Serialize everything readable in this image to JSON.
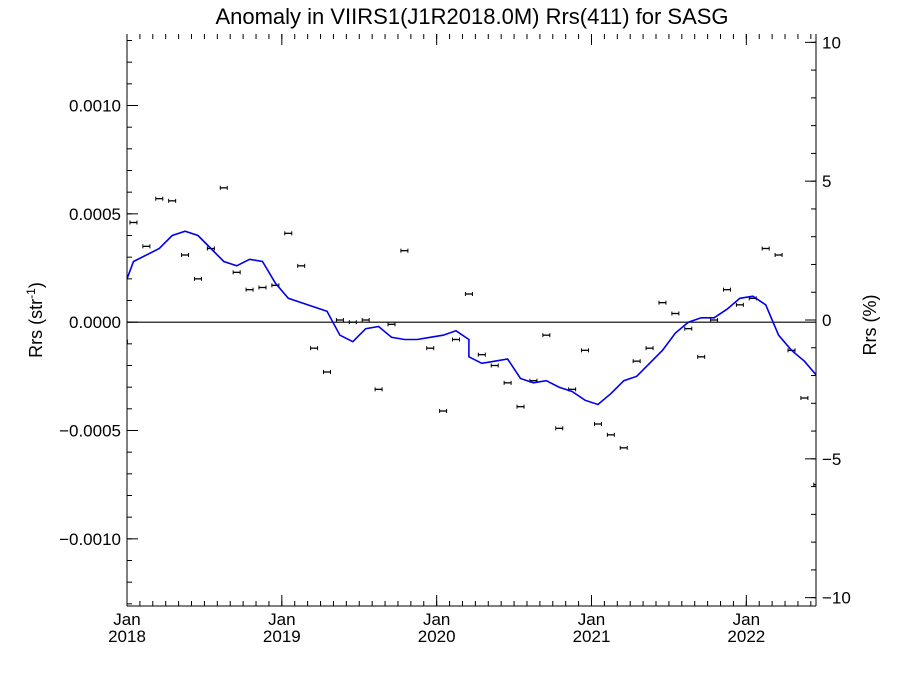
{
  "chart_data": {
    "type": "scatter",
    "title": "Anomaly in VIIRS1(J1R2018.0M) Rrs(411) for SASG",
    "ylabel_left": "Rrs (str",
    "ylabel_left_sup": "-1",
    "ylabel_left_tail": ")",
    "ylabel_right": "Rrs (%)",
    "xlabel": "",
    "ylim": [
      -0.00131,
      0.00133
    ],
    "ylim_right": [
      -10.3,
      10.3
    ],
    "x_ticks": [
      {
        "month": "Jan",
        "year": "2018",
        "t": 2018.0
      },
      {
        "month": "Jan",
        "year": "2019",
        "t": 2019.0
      },
      {
        "month": "Jan",
        "year": "2020",
        "t": 2020.0
      },
      {
        "month": "Jan",
        "year": "2021",
        "t": 2021.0
      },
      {
        "month": "Jan",
        "year": "2022",
        "t": 2022.0
      }
    ],
    "xlim": [
      2018.0,
      2022.45
    ],
    "y_ticks_left": [
      {
        "label": "0.0010",
        "v": 0.001
      },
      {
        "label": "0.0005",
        "v": 0.0005
      },
      {
        "label": "0.0000",
        "v": 0.0
      },
      {
        "label": "−0.0005",
        "v": -0.0005
      },
      {
        "label": "−0.0010",
        "v": -0.001
      }
    ],
    "y_ticks_right": [
      {
        "label": "10",
        "v": 10
      },
      {
        "label": "5",
        "v": 5
      },
      {
        "label": "0",
        "v": 0
      },
      {
        "label": "−5",
        "v": -5
      },
      {
        "label": "−10",
        "v": -10
      }
    ],
    "zero_line": 0.0,
    "series": [
      {
        "type": "scatter_errorbar",
        "color": "#000000",
        "points": [
          {
            "x": "2018-01",
            "y": -9e-05
          },
          {
            "x": "2018-01",
            "y": 0.00046
          },
          {
            "x": "2018-02",
            "y": 0.00035
          },
          {
            "x": "2018-03",
            "y": 0.00057
          },
          {
            "x": "2018-04",
            "y": 0.00056
          },
          {
            "x": "2018-05",
            "y": 0.00031
          },
          {
            "x": "2018-06",
            "y": 0.0002
          },
          {
            "x": "2018-07",
            "y": 0.00034
          },
          {
            "x": "2018-08",
            "y": 0.00062
          },
          {
            "x": "2018-09",
            "y": 0.00023
          },
          {
            "x": "2018-10",
            "y": 0.00015
          },
          {
            "x": "2018-11",
            "y": 0.00016
          },
          {
            "x": "2018-12",
            "y": 0.00017
          },
          {
            "x": "2019-01",
            "y": 0.00041
          },
          {
            "x": "2019-02",
            "y": 0.00026
          },
          {
            "x": "2019-03",
            "y": -0.00012
          },
          {
            "x": "2019-04",
            "y": -0.00023
          },
          {
            "x": "2019-05",
            "y": 1e-05
          },
          {
            "x": "2019-06",
            "y": 0.0
          },
          {
            "x": "2019-07",
            "y": 1e-05
          },
          {
            "x": "2019-08",
            "y": -0.00031
          },
          {
            "x": "2019-09",
            "y": -1e-05
          },
          {
            "x": "2019-10",
            "y": 0.00033
          },
          {
            "x": "2019-12",
            "y": -0.00012
          },
          {
            "x": "2020-01",
            "y": -0.00041
          },
          {
            "x": "2020-02",
            "y": -8e-05
          },
          {
            "x": "2020-03",
            "y": 0.00013
          },
          {
            "x": "2020-04",
            "y": -0.00015
          },
          {
            "x": "2020-05",
            "y": -0.0002
          },
          {
            "x": "2020-06",
            "y": -0.00028
          },
          {
            "x": "2020-07",
            "y": -0.00039
          },
          {
            "x": "2020-08",
            "y": -0.00027
          },
          {
            "x": "2020-09",
            "y": -6e-05
          },
          {
            "x": "2020-10",
            "y": -0.00049
          },
          {
            "x": "2020-11",
            "y": -0.00031
          },
          {
            "x": "2020-12",
            "y": -0.00013
          },
          {
            "x": "2021-01",
            "y": -0.00047
          },
          {
            "x": "2021-02",
            "y": -0.00052
          },
          {
            "x": "2021-03",
            "y": -0.00058
          },
          {
            "x": "2021-04",
            "y": -0.00018
          },
          {
            "x": "2021-05",
            "y": -0.00012
          },
          {
            "x": "2021-06",
            "y": 9e-05
          },
          {
            "x": "2021-07",
            "y": 4e-05
          },
          {
            "x": "2021-08",
            "y": -3e-05
          },
          {
            "x": "2021-09",
            "y": -0.00016
          },
          {
            "x": "2021-10",
            "y": 1e-05
          },
          {
            "x": "2021-11",
            "y": 0.00015
          },
          {
            "x": "2021-12",
            "y": 8e-05
          },
          {
            "x": "2022-01",
            "y": 0.00011
          },
          {
            "x": "2022-02",
            "y": 0.00034
          },
          {
            "x": "2022-03",
            "y": 0.00031
          },
          {
            "x": "2022-04",
            "y": -0.00013
          },
          {
            "x": "2022-05",
            "y": -0.00035
          },
          {
            "x": "2022-06",
            "y": -0.00075
          }
        ]
      },
      {
        "type": "line",
        "color": "#0000ee",
        "points": [
          {
            "x": "2018-01",
            "y": 0.0002
          },
          {
            "x": "2018-01",
            "y": 0.00028
          },
          {
            "x": "2018-03",
            "y": 0.00034
          },
          {
            "x": "2018-04",
            "y": 0.0004
          },
          {
            "x": "2018-05",
            "y": 0.00042
          },
          {
            "x": "2018-06",
            "y": 0.0004
          },
          {
            "x": "2018-07",
            "y": 0.00034
          },
          {
            "x": "2018-08",
            "y": 0.00028
          },
          {
            "x": "2018-09",
            "y": 0.00026
          },
          {
            "x": "2018-10",
            "y": 0.00029
          },
          {
            "x": "2018-11",
            "y": 0.00028
          },
          {
            "x": "2018-12",
            "y": 0.00018
          },
          {
            "x": "2019-01",
            "y": 0.00011
          },
          {
            "x": "2019-04",
            "y": 5e-05
          },
          {
            "x": "2019-05",
            "y": -6e-05
          },
          {
            "x": "2019-06",
            "y": -9e-05
          },
          {
            "x": "2019-07",
            "y": -3e-05
          },
          {
            "x": "2019-08",
            "y": -2e-05
          },
          {
            "x": "2019-09",
            "y": -7e-05
          },
          {
            "x": "2019-10",
            "y": -8e-05
          },
          {
            "x": "2019-11",
            "y": -8e-05
          },
          {
            "x": "2019-12",
            "y": -7e-05
          },
          {
            "x": "2020-01",
            "y": -6e-05
          },
          {
            "x": "2020-02",
            "y": -4e-05
          },
          {
            "x": "2020-03",
            "y": -8e-05
          },
          {
            "x": "2020-03",
            "y": -0.00016
          },
          {
            "x": "2020-04",
            "y": -0.00019
          },
          {
            "x": "2020-05",
            "y": -0.00018
          },
          {
            "x": "2020-06",
            "y": -0.00017
          },
          {
            "x": "2020-07",
            "y": -0.00026
          },
          {
            "x": "2020-08",
            "y": -0.00028
          },
          {
            "x": "2020-09",
            "y": -0.00027
          },
          {
            "x": "2020-10",
            "y": -0.0003
          },
          {
            "x": "2020-11",
            "y": -0.00032
          },
          {
            "x": "2020-12",
            "y": -0.00036
          },
          {
            "x": "2021-01",
            "y": -0.00038
          },
          {
            "x": "2021-02",
            "y": -0.00033
          },
          {
            "x": "2021-03",
            "y": -0.00027
          },
          {
            "x": "2021-04",
            "y": -0.00025
          },
          {
            "x": "2021-05",
            "y": -0.00019
          },
          {
            "x": "2021-06",
            "y": -0.00013
          },
          {
            "x": "2021-07",
            "y": -5e-05
          },
          {
            "x": "2021-08",
            "y": 0.0
          },
          {
            "x": "2021-09",
            "y": 2e-05
          },
          {
            "x": "2021-10",
            "y": 2e-05
          },
          {
            "x": "2021-11",
            "y": 6e-05
          },
          {
            "x": "2021-12",
            "y": 0.00011
          },
          {
            "x": "2022-01",
            "y": 0.00012
          },
          {
            "x": "2022-02",
            "y": 8e-05
          },
          {
            "x": "2022-03",
            "y": -6e-05
          },
          {
            "x": "2022-04",
            "y": -0.00013
          },
          {
            "x": "2022-05",
            "y": -0.00018
          },
          {
            "x": "2022-06",
            "y": -0.00025
          }
        ]
      }
    ]
  }
}
